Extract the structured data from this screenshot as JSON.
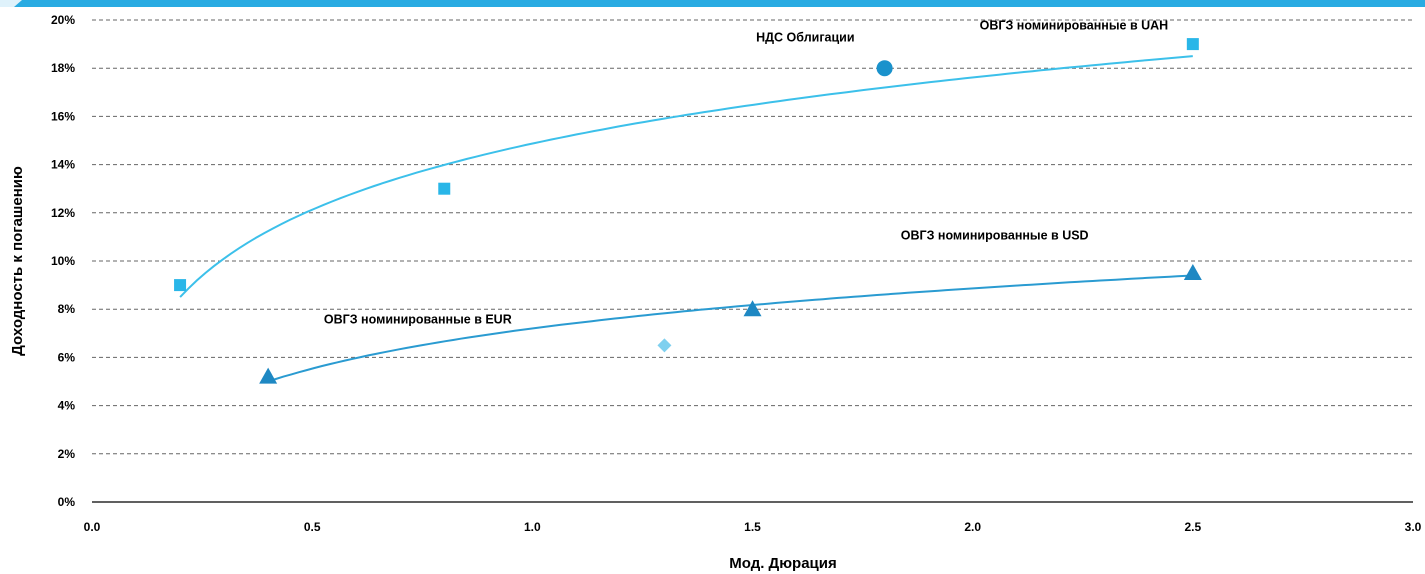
{
  "chart_data": {
    "type": "scatter",
    "xlabel": "Мод. Дюрация",
    "ylabel": "Доходность к погашению",
    "xlim": [
      0,
      3
    ],
    "ylim": [
      0,
      20
    ],
    "x_ticks": [
      "0.0",
      "0.5",
      "1.0",
      "1.5",
      "2.0",
      "2.5",
      "3.0"
    ],
    "y_ticks": [
      "0%",
      "2%",
      "4%",
      "6%",
      "8%",
      "10%",
      "12%",
      "14%",
      "16%",
      "18%",
      "20%"
    ],
    "grid": "horizontal-dashed",
    "series": [
      {
        "marker": "square",
        "color": "#29b6e8",
        "points": [
          {
            "x": 0.2,
            "y": 9.0
          },
          {
            "x": 0.8,
            "y": 13.0
          },
          {
            "x": 2.5,
            "y": 19.0
          }
        ]
      },
      {
        "marker": "circle",
        "color": "#1a92cc",
        "points": [
          {
            "x": 1.8,
            "y": 18.0
          }
        ]
      },
      {
        "marker": "triangle",
        "color": "#1e88c3",
        "points": [
          {
            "x": 0.4,
            "y": 5.2
          },
          {
            "x": 1.5,
            "y": 8.0
          },
          {
            "x": 2.5,
            "y": 9.5
          }
        ]
      },
      {
        "marker": "diamond",
        "color": "#7fd0ef",
        "points": [
          {
            "x": 1.3,
            "y": 6.5
          }
        ]
      }
    ],
    "trendlines": [
      {
        "type": "logarithmic",
        "color": "#3cc0ea",
        "x_from": 0.2,
        "x_to": 2.5,
        "y_from": 8.5,
        "y_to": 18.5
      },
      {
        "type": "logarithmic",
        "color": "#2a9bd1",
        "x_from": 0.4,
        "x_to": 2.5,
        "y_from": 5.0,
        "y_to": 9.4
      }
    ],
    "annotations": [
      {
        "text": "НДС  Облигации",
        "x": 1.62,
        "y": 19.1
      },
      {
        "text": "ОВГЗ номинированные в UAH",
        "x": 2.23,
        "y": 19.6
      },
      {
        "text": "ОВГЗ номинированные в USD",
        "x": 2.05,
        "y": 10.9
      },
      {
        "text": "ОВГЗ номинированные в EUR",
        "x": 0.74,
        "y": 7.4
      }
    ]
  }
}
